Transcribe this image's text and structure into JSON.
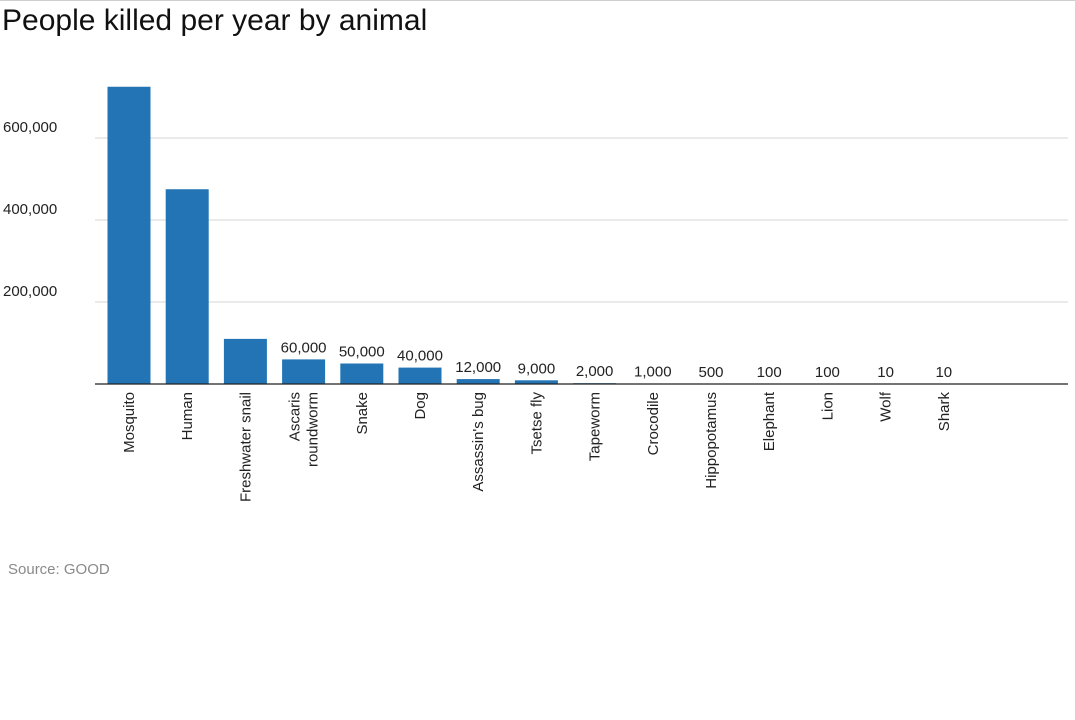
{
  "chart_data": {
    "type": "bar",
    "title": "People killed per year by animal",
    "categories": [
      "Mosquito",
      "Human",
      "Freshwater snail",
      "Ascaris roundworm",
      "Snake",
      "Dog",
      "Assassin's bug",
      "Tsetse fly",
      "Tapeworm",
      "Crocodile",
      "Hippopotamus",
      "Elephant",
      "Lion",
      "Wolf",
      "Shark"
    ],
    "category_lines": [
      [
        "Mosquito"
      ],
      [
        "Human"
      ],
      [
        "Freshwater snail"
      ],
      [
        "Ascaris",
        "roundworm"
      ],
      [
        "Snake"
      ],
      [
        "Dog"
      ],
      [
        "Assassin's bug"
      ],
      [
        "Tsetse fly"
      ],
      [
        "Tapeworm"
      ],
      [
        "Crocodile"
      ],
      [
        "Hippopotamus"
      ],
      [
        "Elephant"
      ],
      [
        "Lion"
      ],
      [
        "Wolf"
      ],
      [
        "Shark"
      ]
    ],
    "values": [
      725000,
      475000,
      110000,
      60000,
      50000,
      40000,
      12000,
      9000,
      2000,
      1000,
      500,
      100,
      100,
      10,
      10
    ],
    "data_labels": [
      "",
      "",
      "",
      "60,000",
      "50,000",
      "40,000",
      "12,000",
      "9,000",
      "2,000",
      "1,000",
      "500",
      "100",
      "100",
      "10",
      "10"
    ],
    "y_ticks": [
      200000,
      400000,
      600000
    ],
    "y_tick_labels": [
      "200,000",
      "400,000",
      "600,000"
    ],
    "ylim": [
      0,
      800000
    ],
    "grid": true,
    "legend": "none",
    "bar_color": "#2274b5",
    "source": "Source: GOOD"
  }
}
